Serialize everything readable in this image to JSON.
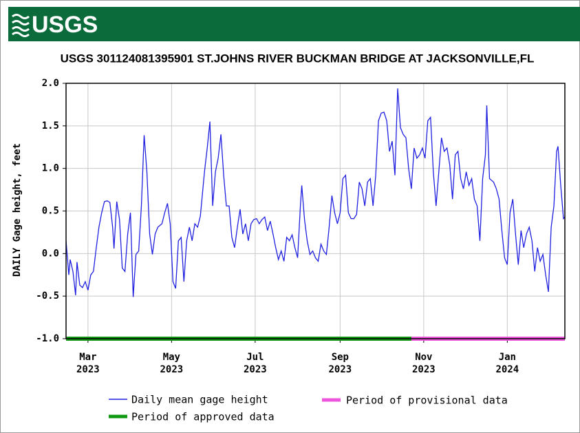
{
  "header": {
    "logo": "USGS"
  },
  "chart_data": {
    "type": "line",
    "title": "USGS 301124081395901 ST.JOHNS RIVER BUCKMAN BRIDGE AT JACKSONVILLE,FL",
    "y_label": "DAILY Gage height, feet",
    "xlim": [
      0,
      364
    ],
    "xticks": [
      {
        "value": 16,
        "label": "Mar",
        "sublabel": "2023"
      },
      {
        "value": 77,
        "label": "May",
        "sublabel": "2023"
      },
      {
        "value": 138,
        "label": "Jul",
        "sublabel": "2023"
      },
      {
        "value": 200,
        "label": "Sep",
        "sublabel": "2023"
      },
      {
        "value": 261,
        "label": "Nov",
        "sublabel": "2023"
      },
      {
        "value": 322,
        "label": "Jan",
        "sublabel": "2024"
      }
    ],
    "ylim": [
      -1,
      2
    ],
    "yticks": [
      {
        "value": 2,
        "label": "2.0"
      },
      1.5,
      {
        "value": 1,
        "label": "1.0"
      },
      0.5,
      {
        "value": 0,
        "label": "0.0"
      },
      -0.5,
      {
        "value": -1,
        "label": "-1.0"
      }
    ],
    "grid": true,
    "series": [
      {
        "name": "Daily mean gage height",
        "color": "#1f1fe0",
        "x": [
          0,
          2,
          3,
          5,
          7,
          8,
          10,
          12,
          14,
          16,
          18,
          20,
          22,
          24,
          26,
          28,
          30,
          32,
          34,
          35,
          37,
          39,
          41,
          43,
          45,
          47,
          49,
          51,
          53,
          55,
          57,
          59,
          61,
          63,
          65,
          67,
          70,
          72,
          74,
          76,
          78,
          80,
          82,
          84,
          86,
          88,
          90,
          92,
          94,
          96,
          98,
          101,
          103,
          105,
          107,
          109,
          111,
          113,
          115,
          117,
          119,
          121,
          123,
          125,
          127,
          129,
          131,
          133,
          135,
          137,
          139,
          141,
          143,
          145,
          147,
          149,
          151,
          153,
          155,
          157,
          159,
          161,
          163,
          165,
          167,
          169,
          171,
          172,
          174,
          176,
          178,
          180,
          182,
          184,
          186,
          188,
          190,
          192,
          194,
          196,
          198,
          200,
          202,
          204,
          206,
          208,
          210,
          212,
          214,
          216,
          218,
          220,
          222,
          224,
          226,
          228,
          230,
          232,
          234,
          236,
          238,
          240,
          242,
          244,
          246,
          248,
          250,
          252,
          254,
          256,
          258,
          260,
          262,
          264,
          266,
          268,
          270,
          272,
          274,
          276,
          278,
          280,
          282,
          284,
          286,
          288,
          290,
          292,
          294,
          296,
          298,
          300,
          302,
          304,
          306,
          307,
          309,
          312,
          314,
          316,
          318,
          320,
          322,
          324,
          326,
          328,
          330,
          332,
          334,
          336,
          338,
          340,
          342,
          344,
          346,
          348,
          350,
          352,
          354,
          356,
          358,
          359,
          361,
          363,
          364
        ],
        "values": [
          0.15,
          -0.25,
          -0.07,
          -0.21,
          -0.49,
          -0.1,
          -0.37,
          -0.4,
          -0.33,
          -0.43,
          -0.25,
          -0.21,
          0.06,
          0.31,
          0.48,
          0.61,
          0.62,
          0.6,
          0.31,
          0.06,
          0.61,
          0.4,
          -0.17,
          -0.21,
          0.23,
          0.48,
          -0.51,
          -0.01,
          0.03,
          0.56,
          1.39,
          0.96,
          0.23,
          -0.01,
          0.23,
          0.31,
          0.35,
          0.48,
          0.59,
          0.35,
          -0.33,
          -0.41,
          0.15,
          0.19,
          -0.33,
          0.15,
          0.31,
          0.15,
          0.35,
          0.31,
          0.44,
          0.96,
          1.24,
          1.55,
          0.56,
          0.96,
          1.12,
          1.4,
          0.92,
          0.56,
          0.56,
          0.19,
          0.07,
          0.31,
          0.52,
          0.23,
          0.35,
          0.15,
          0.35,
          0.4,
          0.41,
          0.35,
          0.4,
          0.43,
          0.27,
          0.38,
          0.23,
          0.07,
          -0.07,
          0.03,
          -0.09,
          0.19,
          0.15,
          0.22,
          0.07,
          -0.05,
          0.56,
          0.8,
          0.4,
          0.15,
          -0.01,
          0.03,
          -0.05,
          -0.09,
          0.11,
          0.03,
          -0.01,
          0.31,
          0.68,
          0.48,
          0.35,
          0.48,
          0.88,
          0.92,
          0.48,
          0.41,
          0.41,
          0.46,
          0.84,
          0.76,
          0.56,
          0.84,
          0.88,
          0.56,
          0.92,
          1.56,
          1.65,
          1.66,
          1.56,
          1.2,
          1.32,
          0.92,
          1.94,
          1.48,
          1.4,
          1.36,
          1.0,
          0.76,
          1.24,
          1.12,
          1.16,
          1.24,
          1.12,
          1.56,
          1.6,
          0.96,
          0.56,
          0.96,
          1.36,
          1.2,
          1.24,
          1.04,
          0.64,
          1.16,
          1.2,
          0.88,
          0.76,
          0.96,
          0.8,
          0.88,
          0.64,
          0.56,
          0.15,
          0.88,
          1.16,
          1.74,
          0.88,
          0.84,
          0.76,
          0.64,
          0.27,
          -0.05,
          -0.13,
          0.48,
          0.64,
          0.23,
          -0.13,
          0.27,
          0.07,
          0.23,
          0.31,
          0.15,
          -0.21,
          0.07,
          -0.09,
          -0.01,
          -0.25,
          -0.45,
          0.31,
          0.56,
          1.2,
          1.26,
          0.8,
          0.41,
          0.43
        ]
      }
    ],
    "periods": [
      {
        "name": "Period of approved data",
        "color": "#119911",
        "start": 0,
        "end": 252
      },
      {
        "name": "Period of provisional data",
        "color": "#ee55dd",
        "start": 252,
        "end": 364
      }
    ]
  }
}
